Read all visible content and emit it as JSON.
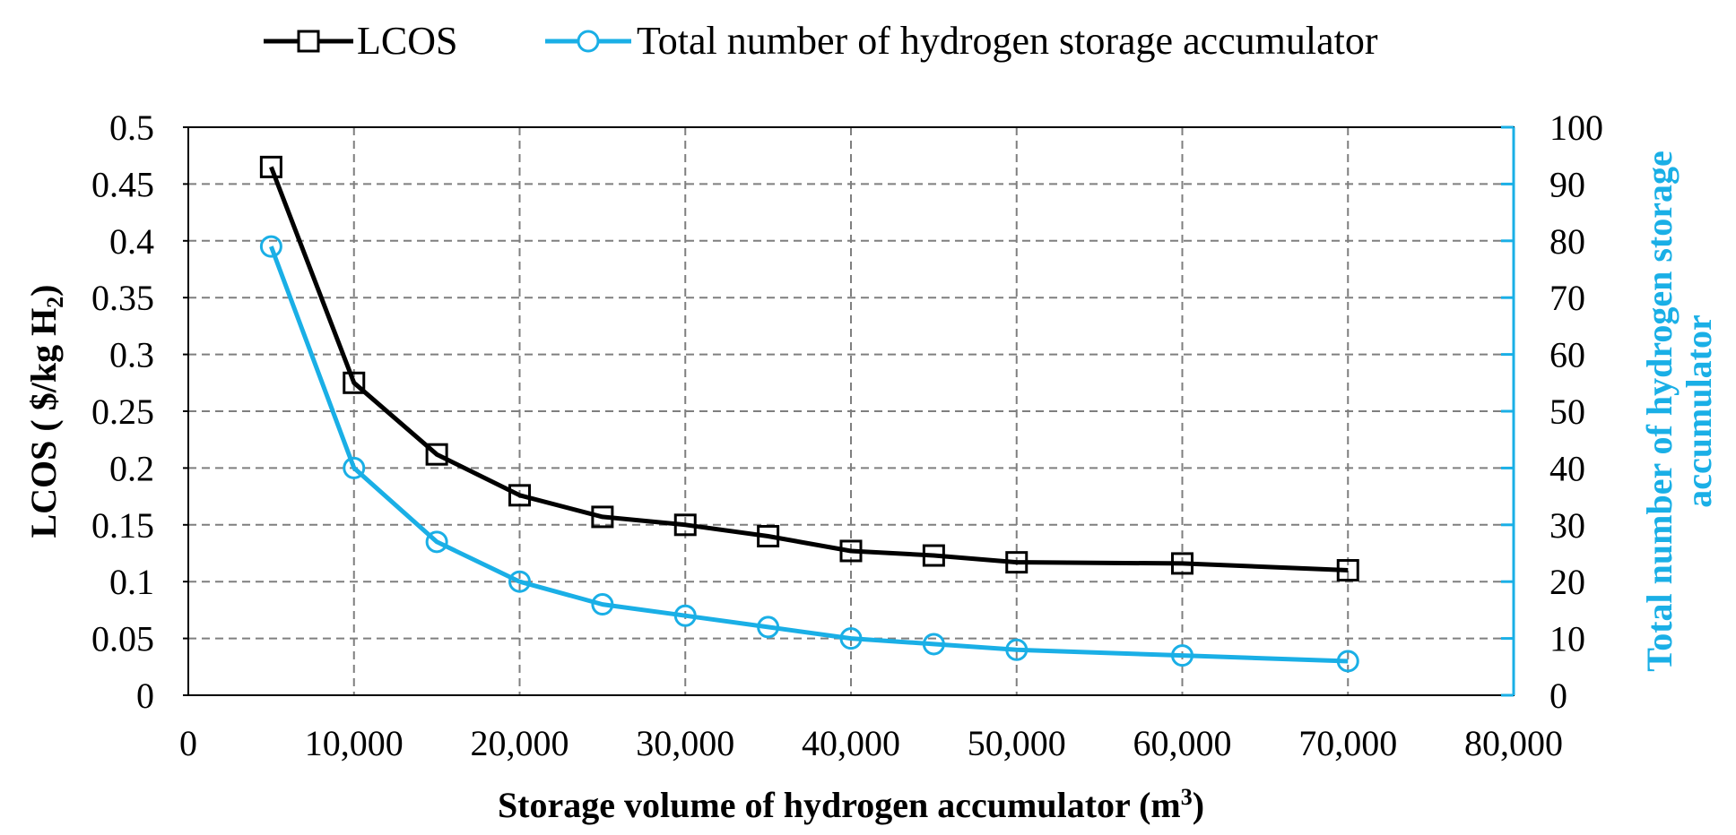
{
  "chart_data": {
    "type": "line",
    "x_axis": {
      "label": "Storage volume of hydrogen accumulator (m",
      "label_sup": "3",
      "label_close": ")",
      "range": [
        0,
        80000
      ],
      "tick_labels": [
        "0",
        "10,000",
        "20,000",
        "30,000",
        "40,000",
        "50,000",
        "60,000",
        "70,000",
        "80,000"
      ]
    },
    "y_axis_left": {
      "label": "LCOS ( $/kg H",
      "label_sub": "2",
      "label_close": ")",
      "range": [
        0,
        0.5
      ],
      "tick_labels": [
        "0",
        "0.05",
        "0.1",
        "0.15",
        "0.2",
        "0.25",
        "0.3",
        "0.35",
        "0.4",
        "0.45",
        "0.5"
      ]
    },
    "y_axis_right": {
      "label_line1": "Total number of hydrogen storage",
      "label_line2": "accumulator",
      "range": [
        0,
        100
      ],
      "tick_labels": [
        "0",
        "10",
        "20",
        "30",
        "40",
        "50",
        "60",
        "70",
        "80",
        "90",
        "100"
      ],
      "color": "#1AAFE6"
    },
    "grid": true,
    "legend_placement": "top",
    "series": [
      {
        "name": "LCOS",
        "axis": "left",
        "marker": "square",
        "color": "#000000",
        "x": [
          5000,
          10000,
          15000,
          20000,
          25000,
          30000,
          35000,
          40000,
          45000,
          50000,
          60000,
          70000
        ],
        "y": [
          0.465,
          0.275,
          0.212,
          0.176,
          0.157,
          0.15,
          0.14,
          0.127,
          0.123,
          0.117,
          0.116,
          0.11
        ]
      },
      {
        "name": "Total number of hydrogen storage accumulator",
        "axis": "right",
        "marker": "circle",
        "color": "#1AAFE6",
        "x": [
          5000,
          10000,
          15000,
          20000,
          25000,
          30000,
          35000,
          40000,
          45000,
          50000,
          60000,
          70000
        ],
        "y": [
          79,
          40,
          27,
          20,
          16,
          14,
          12,
          10,
          9,
          8,
          7,
          6
        ]
      }
    ]
  }
}
